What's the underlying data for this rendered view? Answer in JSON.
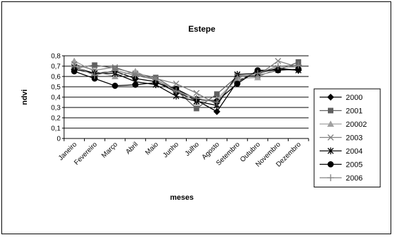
{
  "chart_data": {
    "type": "line",
    "title": "Estepe",
    "xlabel": "meses",
    "ylabel": "ndvi",
    "ylim": [
      0,
      0.8
    ],
    "ytick_step": 0.1,
    "yticks": [
      "0",
      "0,1",
      "0,2",
      "0,3",
      "0,4",
      "0,5",
      "0,6",
      "0,7",
      "0,8"
    ],
    "grid": true,
    "legend_position": "right",
    "categories": [
      "Janeiro",
      "Fevereiro",
      "Março",
      "Abril",
      "Maio",
      "Junho",
      "Julho",
      "Agosto",
      "Setembro",
      "Outubro",
      "Novembro",
      "Dezembro"
    ],
    "series": [
      {
        "name": "2000",
        "marker": "diamond",
        "color": "#000000",
        "values": [
          0.67,
          0.63,
          0.65,
          0.58,
          0.55,
          0.45,
          0.37,
          0.26,
          0.55,
          0.65,
          0.67,
          0.66
        ]
      },
      {
        "name": "2001",
        "marker": "square",
        "color": "#606060",
        "values": [
          0.68,
          0.71,
          0.68,
          0.63,
          0.59,
          0.47,
          0.29,
          0.43,
          0.6,
          0.61,
          0.66,
          0.74
        ]
      },
      {
        "name": "20002",
        "marker": "triangle",
        "color": "#a0a0a0",
        "values": [
          0.75,
          0.65,
          0.6,
          0.65,
          0.56,
          0.48,
          0.35,
          0.38,
          0.58,
          0.59,
          0.69,
          0.69
        ]
      },
      {
        "name": "2003",
        "marker": "x",
        "color": "#808080",
        "values": [
          0.72,
          0.66,
          0.69,
          0.62,
          0.58,
          0.53,
          0.44,
          0.33,
          0.61,
          0.61,
          0.75,
          0.69
        ]
      },
      {
        "name": "2004",
        "marker": "star",
        "color": "#000000",
        "values": [
          0.69,
          0.63,
          0.63,
          0.55,
          0.52,
          0.41,
          0.36,
          0.32,
          0.62,
          0.63,
          0.68,
          0.66
        ]
      },
      {
        "name": "2005",
        "marker": "circle",
        "color": "#000000",
        "values": [
          0.65,
          0.58,
          0.51,
          0.52,
          0.54,
          0.48,
          0.38,
          0.36,
          0.53,
          0.66,
          0.66,
          0.67
        ]
      },
      {
        "name": "2006",
        "marker": "plus",
        "color": "#808080",
        "values": [
          0.7,
          0.61,
          0.66,
          0.61,
          0.57,
          0.46,
          0.39,
          0.35,
          0.59,
          0.63,
          0.7,
          0.71
        ]
      }
    ]
  }
}
